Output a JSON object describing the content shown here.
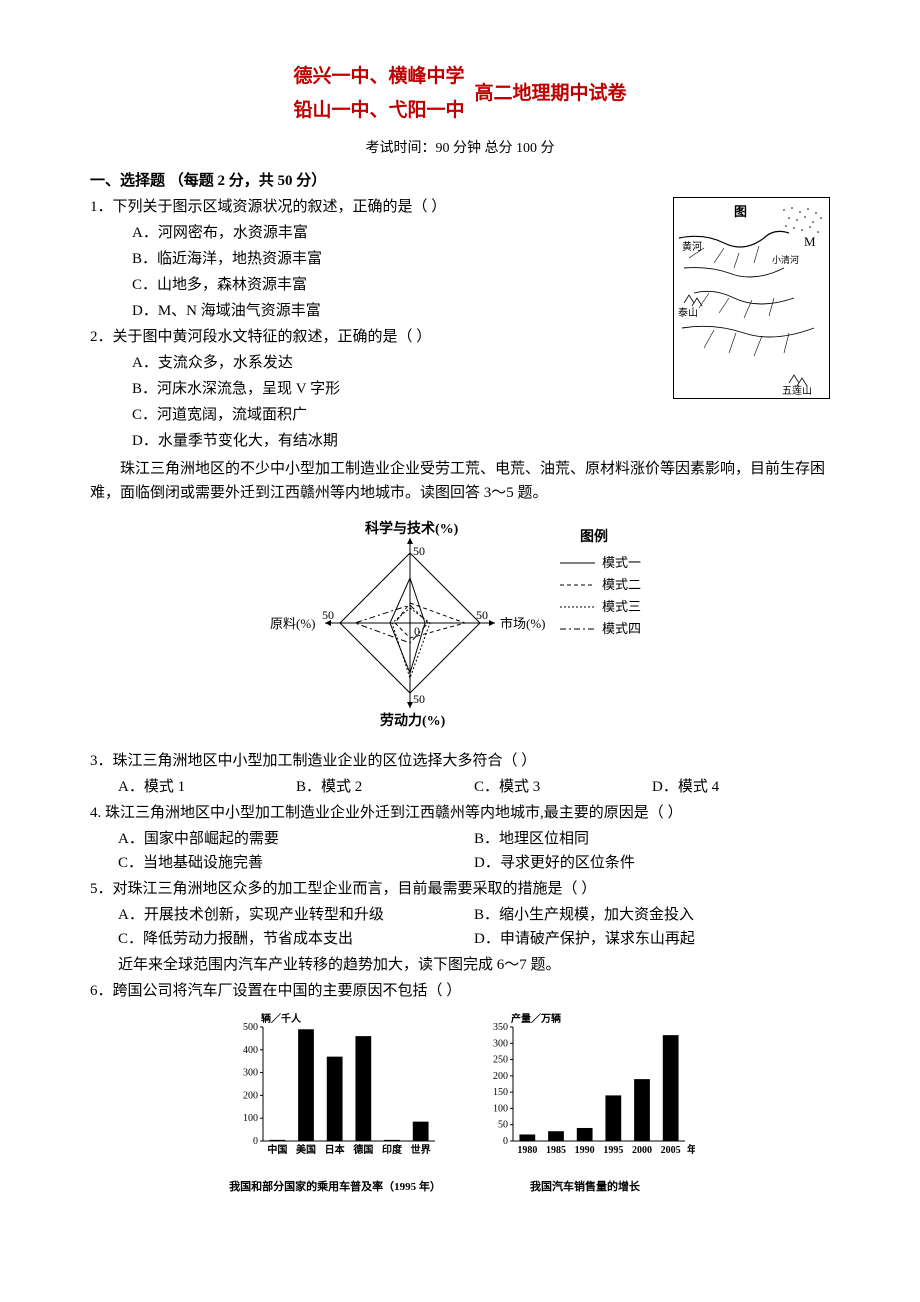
{
  "header": {
    "schools_l1": "德兴一中、横峰中学",
    "schools_l2": "铅山一中、弋阳一中",
    "exam_title": "高二地理期中试卷",
    "exam_info": "考试时间：90 分钟    总分 100 分"
  },
  "section1": {
    "title": "一、选择题 （每题 2 分，共 50 分）"
  },
  "q1": {
    "stem": "1．下列关于图示区域资源状况的叙述，正确的是（    ）",
    "a": "A．河网密布，水资源丰富",
    "b": "B．临近海洋，地热资源丰富",
    "c": "C．山地多，森林资源丰富",
    "d": "D．M、N 海域油气资源丰富"
  },
  "q2": {
    "stem": "2．关于图中黄河段水文特征的叙述，正确的是（    ）",
    "a": "A．支流众多，水系发达",
    "b": "B．河床水深流急，呈现 V 字形",
    "c": "C．河道宽阔，流域面积广",
    "d": "D．水量季节变化大，有结冰期"
  },
  "passage1": {
    "text": "珠江三角洲地区的不少中小型加工制造业企业受劳工荒、电荒、油荒、原材料涨价等因素影响，目前生存困难，面临倒闭或需要外迁到江西赣州等内地城市。读图回答 3～5 题。"
  },
  "radarChart": {
    "axes": {
      "top": "科学与技术(%)",
      "right": "市场(%)",
      "bottom": "劳动力(%)",
      "left": "原料(%)"
    },
    "ticks": [
      "0",
      "50",
      "50",
      "50",
      "50"
    ],
    "legend_title": "图例",
    "legend": [
      "模式一",
      "模式二",
      "模式三",
      "模式四"
    ],
    "colors": {
      "axis": "#000",
      "line": "#000"
    }
  },
  "q3": {
    "stem": "3．珠江三角洲地区中小型加工制造业企业的区位选择大多符合（    ）",
    "a": "A．模式 1",
    "b": "B．模式 2",
    "c": "C．模式 3",
    "d": "D．模式 4"
  },
  "q4": {
    "stem": "4. 珠江三角洲地区中小型加工制造业企业外迁到江西赣州等内地城市,最主要的原因是（    ）",
    "a": "A．国家中部崛起的需要",
    "b": "B．地理区位相同",
    "c": "C．当地基础设施完善",
    "d": "D．寻求更好的区位条件"
  },
  "q5": {
    "stem": "5．对珠江三角洲地区众多的加工型企业而言，目前最需要采取的措施是（    ）",
    "a": "A．开展技术创新，实现产业转型和升级",
    "b": "B．缩小生产规模，加大资金投入",
    "c": "C．降低劳动力报酬，节省成本支出",
    "d": "D．申请破产保护，谋求东山再起"
  },
  "passage2": {
    "text": "近年来全球范围内汽车产业转移的趋势加大，读下图完成 6～7 题。"
  },
  "q6": {
    "stem": "6．跨国公司将汽车厂设置在中国的主要原因不包括（    ）"
  },
  "barChart1": {
    "title": "我国和部分国家的乘用车普及率（1995 年）",
    "ylabel": "辆／千人",
    "ymax": 500,
    "ytick": 100,
    "categories": [
      "中国",
      "美国",
      "日本",
      "德国",
      "印度",
      "世界"
    ],
    "values": [
      5,
      490,
      370,
      460,
      5,
      85
    ],
    "bar_color": "#000000",
    "font_size": 10
  },
  "barChart2": {
    "title": "我国汽车销售量的增长",
    "ylabel": "产量／万辆",
    "ymax": 350,
    "ytick": 50,
    "categories": [
      "1980",
      "1985",
      "1990",
      "1995",
      "2000",
      "2005"
    ],
    "xsuffix": "年",
    "values": [
      20,
      30,
      40,
      140,
      190,
      325
    ],
    "bar_color": "#000000",
    "font_size": 10
  },
  "mapLabels": {
    "tu": "图",
    "m": "M",
    "huanghe": "黄河",
    "xiaoqing": "小清河",
    "taishan": "泰山",
    "wulian": "五莲山"
  }
}
